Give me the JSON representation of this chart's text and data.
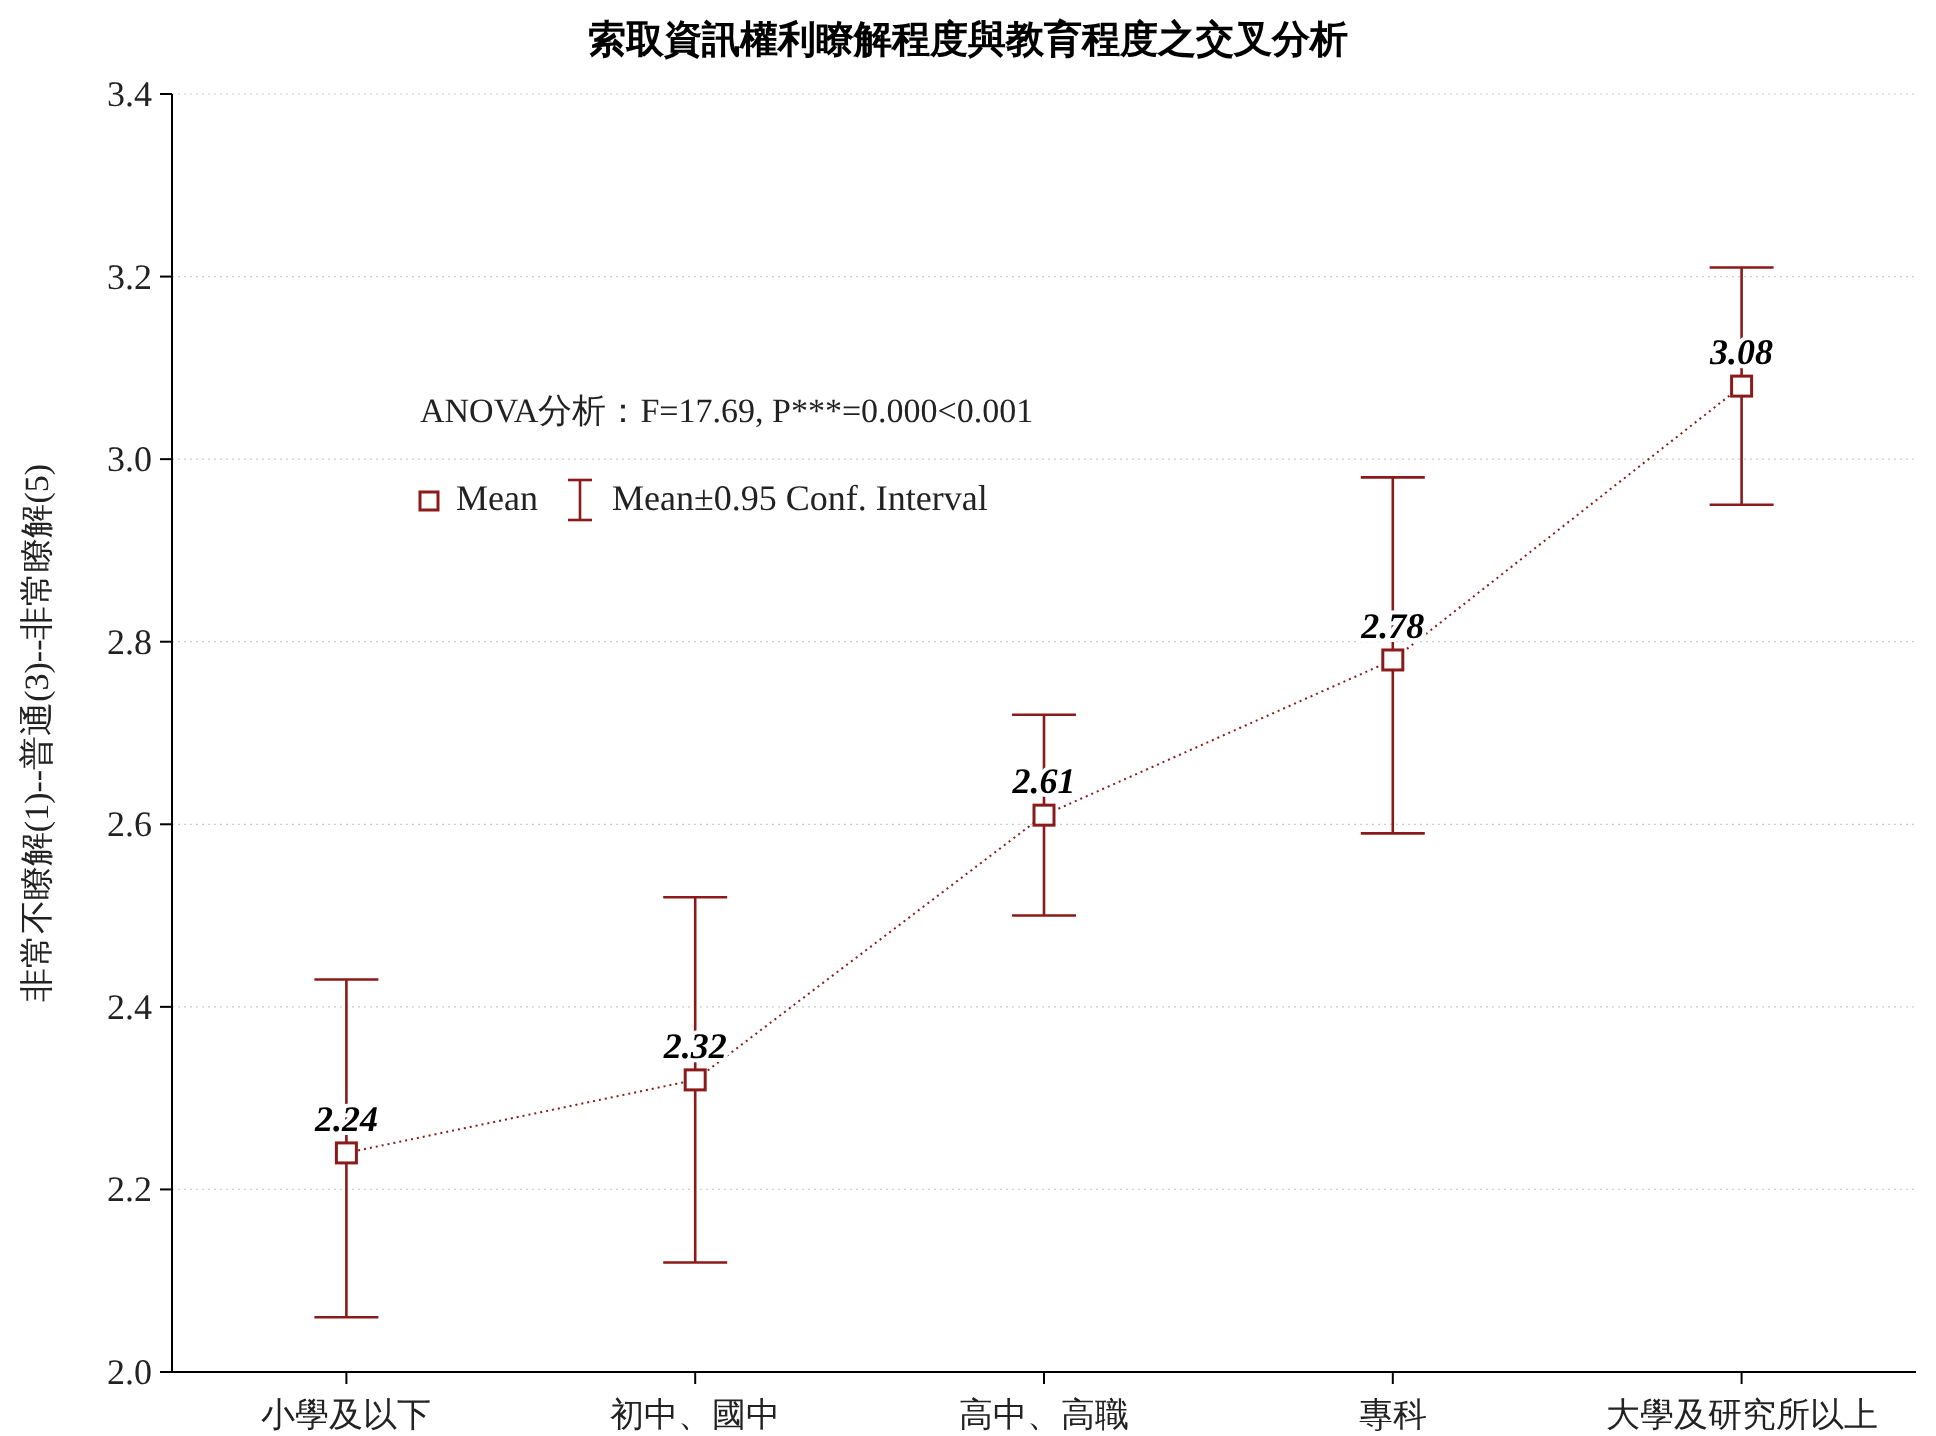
{
  "chart_data": {
    "type": "line",
    "title": "索取資訊權利瞭解程度與教育程度之交叉分析",
    "ylabel": "非常不瞭解(1)--普通(3)--非常瞭解(5)",
    "categories": [
      "小學及以下",
      "初中、國中",
      "高中、高職",
      "專科",
      "大學及研究所以上"
    ],
    "series": [
      {
        "name": "Mean",
        "color": "#8b1a1a",
        "values": [
          2.24,
          2.32,
          2.61,
          2.78,
          3.08
        ],
        "errors": [
          [
            2.06,
            2.43
          ],
          [
            2.12,
            2.52
          ],
          [
            2.5,
            2.72
          ],
          [
            2.59,
            2.98
          ],
          [
            2.95,
            3.21
          ]
        ]
      }
    ],
    "ylim": [
      2.0,
      3.4
    ],
    "yticks": [
      {
        "value": 2,
        "label": "2.0"
      },
      2.2,
      2.4,
      2.6,
      2.8,
      {
        "value": 3,
        "label": "3.0"
      },
      3.2,
      3.4
    ],
    "grid": "y",
    "legend": "top left",
    "marker": "square",
    "line_style": "dotted",
    "data_labels": true,
    "annotations": [
      "ANOVA分析：F=17.69, P***=0.000<0.001",
      "Mean±0.95 Conf. Interval"
    ]
  }
}
